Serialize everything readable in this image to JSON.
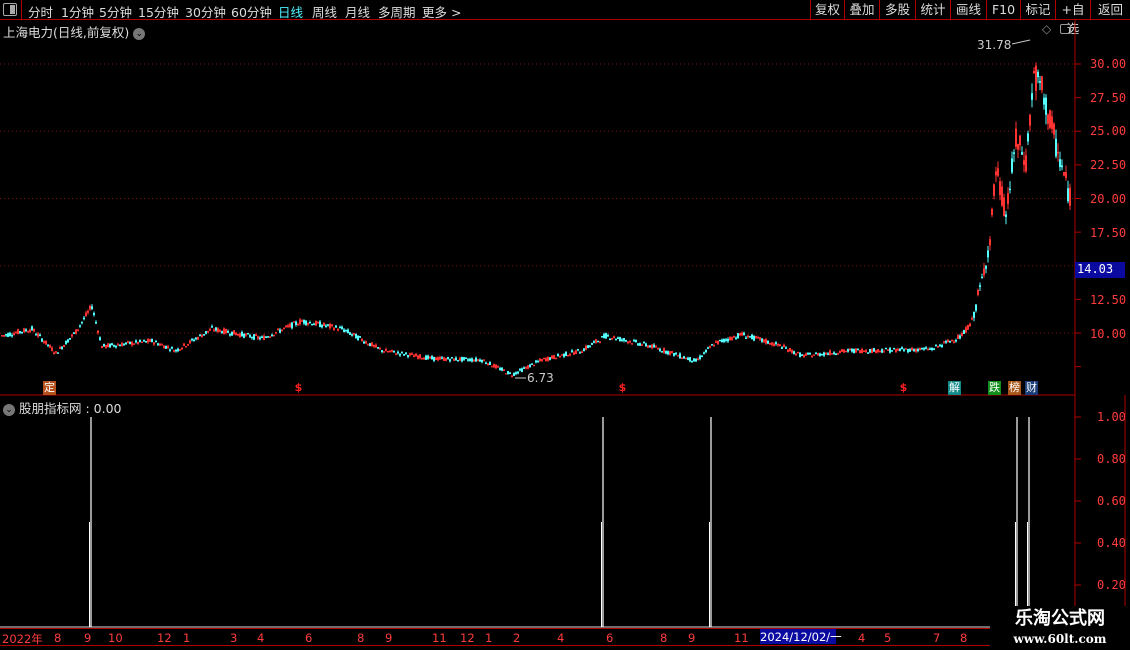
{
  "toolbar": {
    "periods": [
      "分时",
      "1分钟",
      "5分钟",
      "15分钟",
      "30分钟",
      "60分钟",
      "日线",
      "周线",
      "月线",
      "多周期",
      "更多 >"
    ],
    "active_period": "日线",
    "buttons": [
      "复权",
      "叠加",
      "多股",
      "统计",
      "画线",
      "F10",
      "标记",
      "+自选",
      "返回"
    ]
  },
  "main_chart": {
    "title": "上海电力(日线,前复权)",
    "high_label": "31.78",
    "low_label": "6.73",
    "current_price_tag": "14.03",
    "price_axis": [
      "30.00",
      "27.50",
      "25.00",
      "22.50",
      "20.00",
      "17.50",
      "12.50",
      "10.00"
    ],
    "markers": [
      {
        "text": "定",
        "color": "#b5511c"
      },
      {
        "text": "$",
        "color": "#ff2020"
      },
      {
        "text": "$",
        "color": "#ff2020"
      },
      {
        "text": "$",
        "color": "#ff2020"
      },
      {
        "text": "解",
        "color": "#138a8a"
      },
      {
        "text": "跌",
        "color": "#10901a"
      },
      {
        "text": "榜",
        "color": "#a8561a"
      },
      {
        "text": "财",
        "color": "#1a3c78"
      }
    ]
  },
  "indicator": {
    "title": "股朋指标网",
    "value": ": 0.00",
    "axis": [
      "1.00",
      "0.80",
      "0.60",
      "0.40",
      "0.20"
    ]
  },
  "time_axis": [
    "2022年",
    "8",
    "9",
    "10",
    "12",
    "1",
    "3",
    "4",
    "6",
    "8",
    "9",
    "11",
    "12",
    "1",
    "2",
    "4",
    "6",
    "8",
    "9",
    "11",
    "2024/12/02/一",
    "4",
    "5",
    "7",
    "8"
  ],
  "watermark": {
    "line1": "乐淘公式网",
    "line2": "www.60lt.com"
  },
  "colors": {
    "up": "#ff3232",
    "down": "#54ffff",
    "axis": "#b00000",
    "active": "#4ff4ff"
  },
  "chart_data": {
    "type": "candlestick",
    "price_close_anchors_by_bar_index": [
      [
        0,
        9.8
      ],
      [
        15,
        10.3
      ],
      [
        27,
        8.5
      ],
      [
        37,
        10.1
      ],
      [
        45,
        12
      ],
      [
        50,
        9
      ],
      [
        75,
        9.4
      ],
      [
        87,
        8.7
      ],
      [
        105,
        10.3
      ],
      [
        130,
        9.6
      ],
      [
        150,
        10.9
      ],
      [
        170,
        10.3
      ],
      [
        190,
        8.7
      ],
      [
        215,
        8.1
      ],
      [
        240,
        8
      ],
      [
        255,
        6.9
      ],
      [
        270,
        8
      ],
      [
        290,
        8.7
      ],
      [
        302,
        9.8
      ],
      [
        325,
        9
      ],
      [
        347,
        7.9
      ],
      [
        356,
        9.2
      ],
      [
        370,
        9.9
      ],
      [
        390,
        9
      ],
      [
        400,
        8.3
      ],
      [
        425,
        8.7
      ],
      [
        435,
        8.7
      ],
      [
        465,
        8.8
      ],
      [
        480,
        9.8
      ],
      [
        485,
        10.9
      ],
      [
        490,
        13.9
      ],
      [
        494,
        16.9
      ],
      [
        497,
        22.1
      ],
      [
        502,
        18.8
      ],
      [
        507,
        24.3
      ],
      [
        512,
        22.8
      ],
      [
        516,
        29.2
      ],
      [
        520,
        28
      ],
      [
        524,
        25.8
      ],
      [
        529,
        22.8
      ],
      [
        534,
        20.1
      ]
    ],
    "high": 31.78,
    "low": 6.73,
    "ylim": [
      5,
      32
    ],
    "indicator_signals": [
      {
        "bar": 44,
        "value": 1
      },
      {
        "bar": 300,
        "value": 1
      },
      {
        "bar": 354,
        "value": 1
      },
      {
        "bar": 507,
        "value": 1
      },
      {
        "bar": 513,
        "value": 1
      }
    ],
    "indicator_ylim": [
      0,
      1.05
    ]
  }
}
